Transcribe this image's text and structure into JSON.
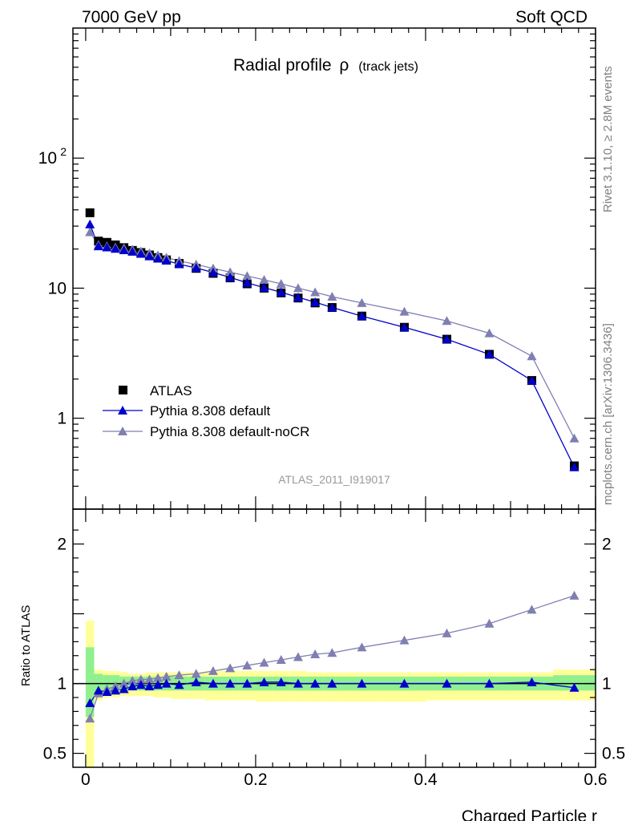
{
  "header": {
    "left": "7000 GeV pp",
    "right": "Soft QCD"
  },
  "title": {
    "main": "Radial profile",
    "symbol": "ρ",
    "sub": "(track jets)"
  },
  "side_labels": {
    "rivet": "Rivet 3.1.10, ≥ 2.8M events",
    "mcplots": "mcplots.cern.ch [arXiv:1306.3436]"
  },
  "analysis_id": "ATLAS_2011_I919017",
  "colors": {
    "atlas": "#000000",
    "pythia_default": "#0000cc",
    "pythia_nocr": "#7f7fb2",
    "band_inner": "#90f090",
    "band_outer": "#ffff99"
  },
  "chart_data": [
    {
      "type": "scatter",
      "panel": "main",
      "xlim": [
        -0.015,
        0.6
      ],
      "ylim": [
        0.2,
        1000
      ],
      "yscale": "log",
      "yticks": [
        {
          "v": 1,
          "label": "1"
        },
        {
          "v": 10,
          "label": "10"
        },
        {
          "v": 100,
          "label": "10",
          "sup": "2"
        }
      ],
      "legend_position": "bottom-left",
      "x": [
        0.005,
        0.015,
        0.025,
        0.035,
        0.045,
        0.055,
        0.065,
        0.075,
        0.085,
        0.095,
        0.11,
        0.13,
        0.15,
        0.17,
        0.19,
        0.21,
        0.23,
        0.25,
        0.27,
        0.29,
        0.325,
        0.375,
        0.425,
        0.475,
        0.525,
        0.575
      ],
      "series": [
        {
          "name": "ATLAS",
          "values": [
            38,
            23,
            22.5,
            21.5,
            20.5,
            19.5,
            18.8,
            18,
            17.2,
            16.5,
            15.5,
            14.2,
            13,
            12,
            10.8,
            10,
            9.2,
            8.4,
            7.7,
            7.1,
            6.1,
            5.0,
            4.05,
            3.1,
            1.95,
            0.43
          ]
        },
        {
          "name": "Pythia 8.308 default",
          "values": [
            31,
            21,
            20.6,
            20.1,
            19.6,
            19.1,
            18.4,
            17.6,
            16.9,
            16.3,
            15.3,
            14.3,
            13.2,
            12.1,
            11.0,
            10.1,
            9.3,
            8.5,
            7.8,
            7.1,
            6.1,
            5.0,
            4.05,
            3.1,
            1.95,
            0.42
          ]
        },
        {
          "name": "Pythia 8.308 default-noCR",
          "values": [
            27,
            21.5,
            21,
            20.6,
            20.3,
            19.8,
            19.2,
            18.6,
            17.9,
            17.2,
            16.2,
            15.2,
            14.2,
            13.3,
            12.4,
            11.6,
            10.8,
            10.0,
            9.3,
            8.6,
            7.7,
            6.6,
            5.6,
            4.5,
            3.0,
            0.7
          ]
        }
      ]
    },
    {
      "type": "line",
      "panel": "ratio",
      "ylabel": "Ratio to ATLAS",
      "xlabel": "Charged Particle r",
      "xlim": [
        -0.015,
        0.6
      ],
      "ylim": [
        0.4,
        2.25
      ],
      "yticks": [
        {
          "v": 0.5,
          "label": "0.5"
        },
        {
          "v": 1,
          "label": "1"
        },
        {
          "v": 2,
          "label": "2"
        }
      ],
      "xticks": [
        {
          "v": 0,
          "label": "0"
        },
        {
          "v": 0.2,
          "label": "0.2"
        },
        {
          "v": 0.4,
          "label": "0.4"
        },
        {
          "v": 0.6,
          "label": "0.6"
        }
      ],
      "x": [
        0.005,
        0.015,
        0.025,
        0.035,
        0.045,
        0.055,
        0.065,
        0.075,
        0.085,
        0.095,
        0.11,
        0.13,
        0.15,
        0.17,
        0.19,
        0.21,
        0.23,
        0.25,
        0.27,
        0.29,
        0.325,
        0.375,
        0.425,
        0.475,
        0.525,
        0.575
      ],
      "series": [
        {
          "name": "Pythia 8.308 default",
          "values": [
            0.86,
            0.95,
            0.94,
            0.95,
            0.96,
            0.98,
            0.99,
            0.98,
            0.99,
            1.0,
            0.99,
            1.01,
            1.0,
            1.0,
            1.0,
            1.01,
            1.01,
            1.0,
            1.0,
            1.0,
            1.0,
            1.0,
            1.0,
            1.0,
            1.01,
            0.97
          ]
        },
        {
          "name": "Pythia 8.308 default-noCR",
          "values": [
            0.75,
            0.93,
            0.96,
            0.98,
            1.0,
            1.02,
            1.03,
            1.03,
            1.04,
            1.05,
            1.06,
            1.07,
            1.09,
            1.11,
            1.13,
            1.15,
            1.17,
            1.19,
            1.21,
            1.22,
            1.26,
            1.31,
            1.36,
            1.43,
            1.53,
            1.63
          ]
        }
      ],
      "band_x_edges": [
        0,
        0.01,
        0.02,
        0.03,
        0.04,
        0.05,
        0.06,
        0.07,
        0.08,
        0.09,
        0.1,
        0.12,
        0.14,
        0.16,
        0.18,
        0.2,
        0.22,
        0.24,
        0.26,
        0.28,
        0.3,
        0.35,
        0.4,
        0.45,
        0.5,
        0.55,
        0.6
      ],
      "band_inner": [
        [
          0.76,
          1.26
        ],
        [
          0.93,
          1.07
        ],
        [
          0.94,
          1.06
        ],
        [
          0.94,
          1.06
        ],
        [
          0.95,
          1.05
        ],
        [
          0.95,
          1.05
        ],
        [
          0.95,
          1.05
        ],
        [
          0.95,
          1.05
        ],
        [
          0.95,
          1.05
        ],
        [
          0.95,
          1.05
        ],
        [
          0.95,
          1.05
        ],
        [
          0.95,
          1.05
        ],
        [
          0.95,
          1.05
        ],
        [
          0.95,
          1.05
        ],
        [
          0.95,
          1.05
        ],
        [
          0.95,
          1.05
        ],
        [
          0.95,
          1.05
        ],
        [
          0.95,
          1.05
        ],
        [
          0.95,
          1.05
        ],
        [
          0.95,
          1.05
        ],
        [
          0.95,
          1.05
        ],
        [
          0.95,
          1.05
        ],
        [
          0.95,
          1.05
        ],
        [
          0.95,
          1.05
        ],
        [
          0.95,
          1.05
        ],
        [
          0.95,
          1.06
        ]
      ],
      "band_outer": [
        [
          0.38,
          1.45
        ],
        [
          0.88,
          1.1
        ],
        [
          0.9,
          1.09
        ],
        [
          0.9,
          1.09
        ],
        [
          0.91,
          1.08
        ],
        [
          0.91,
          1.07
        ],
        [
          0.91,
          1.07
        ],
        [
          0.91,
          1.08
        ],
        [
          0.9,
          1.08
        ],
        [
          0.9,
          1.08
        ],
        [
          0.89,
          1.08
        ],
        [
          0.89,
          1.08
        ],
        [
          0.88,
          1.09
        ],
        [
          0.88,
          1.09
        ],
        [
          0.88,
          1.09
        ],
        [
          0.87,
          1.09
        ],
        [
          0.87,
          1.09
        ],
        [
          0.87,
          1.09
        ],
        [
          0.87,
          1.08
        ],
        [
          0.87,
          1.08
        ],
        [
          0.87,
          1.08
        ],
        [
          0.87,
          1.08
        ],
        [
          0.88,
          1.08
        ],
        [
          0.88,
          1.08
        ],
        [
          0.88,
          1.08
        ],
        [
          0.88,
          1.1
        ]
      ]
    }
  ]
}
